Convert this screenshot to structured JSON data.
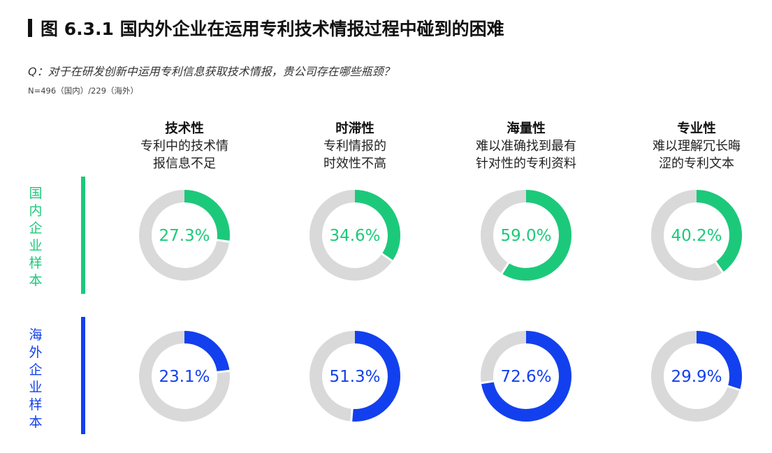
{
  "header": {
    "title": "图 6.3.1 国内外企业在运用专利技术情报过程中碰到的困难",
    "question": "Q：对于在研发创新中运用专利信息获取技术情报，贵公司存在哪些瓶颈？",
    "sample": "N=496（国内）/229（海外）"
  },
  "colors": {
    "domestic": "#1cc97a",
    "overseas": "#1340ee",
    "track": "#d9d9d9"
  },
  "chart_data": {
    "type": "donut-grid",
    "categories": [
      {
        "name": "技术性",
        "desc": "专利中的技术情\n报信息不足"
      },
      {
        "name": "时滞性",
        "desc": "专利情报的\n时效性不高"
      },
      {
        "name": "海量性",
        "desc": "难以准确找到最有\n针对性的专利资料"
      },
      {
        "name": "专业性",
        "desc": "难以理解冗长晦\n涩的专利文本"
      }
    ],
    "series": [
      {
        "name": "国\n内\n企\n业\n样\n本",
        "values": [
          27.3,
          34.6,
          59.0,
          40.2
        ],
        "labels": [
          "27.3%",
          "34.6%",
          "59.0%",
          "40.2%"
        ]
      },
      {
        "name": "海\n外\n企\n业\n样\n本",
        "values": [
          23.1,
          51.3,
          72.6,
          29.9
        ],
        "labels": [
          "23.1%",
          "51.3%",
          "72.6%",
          "29.9%"
        ]
      }
    ],
    "range": [
      0,
      100
    ]
  }
}
